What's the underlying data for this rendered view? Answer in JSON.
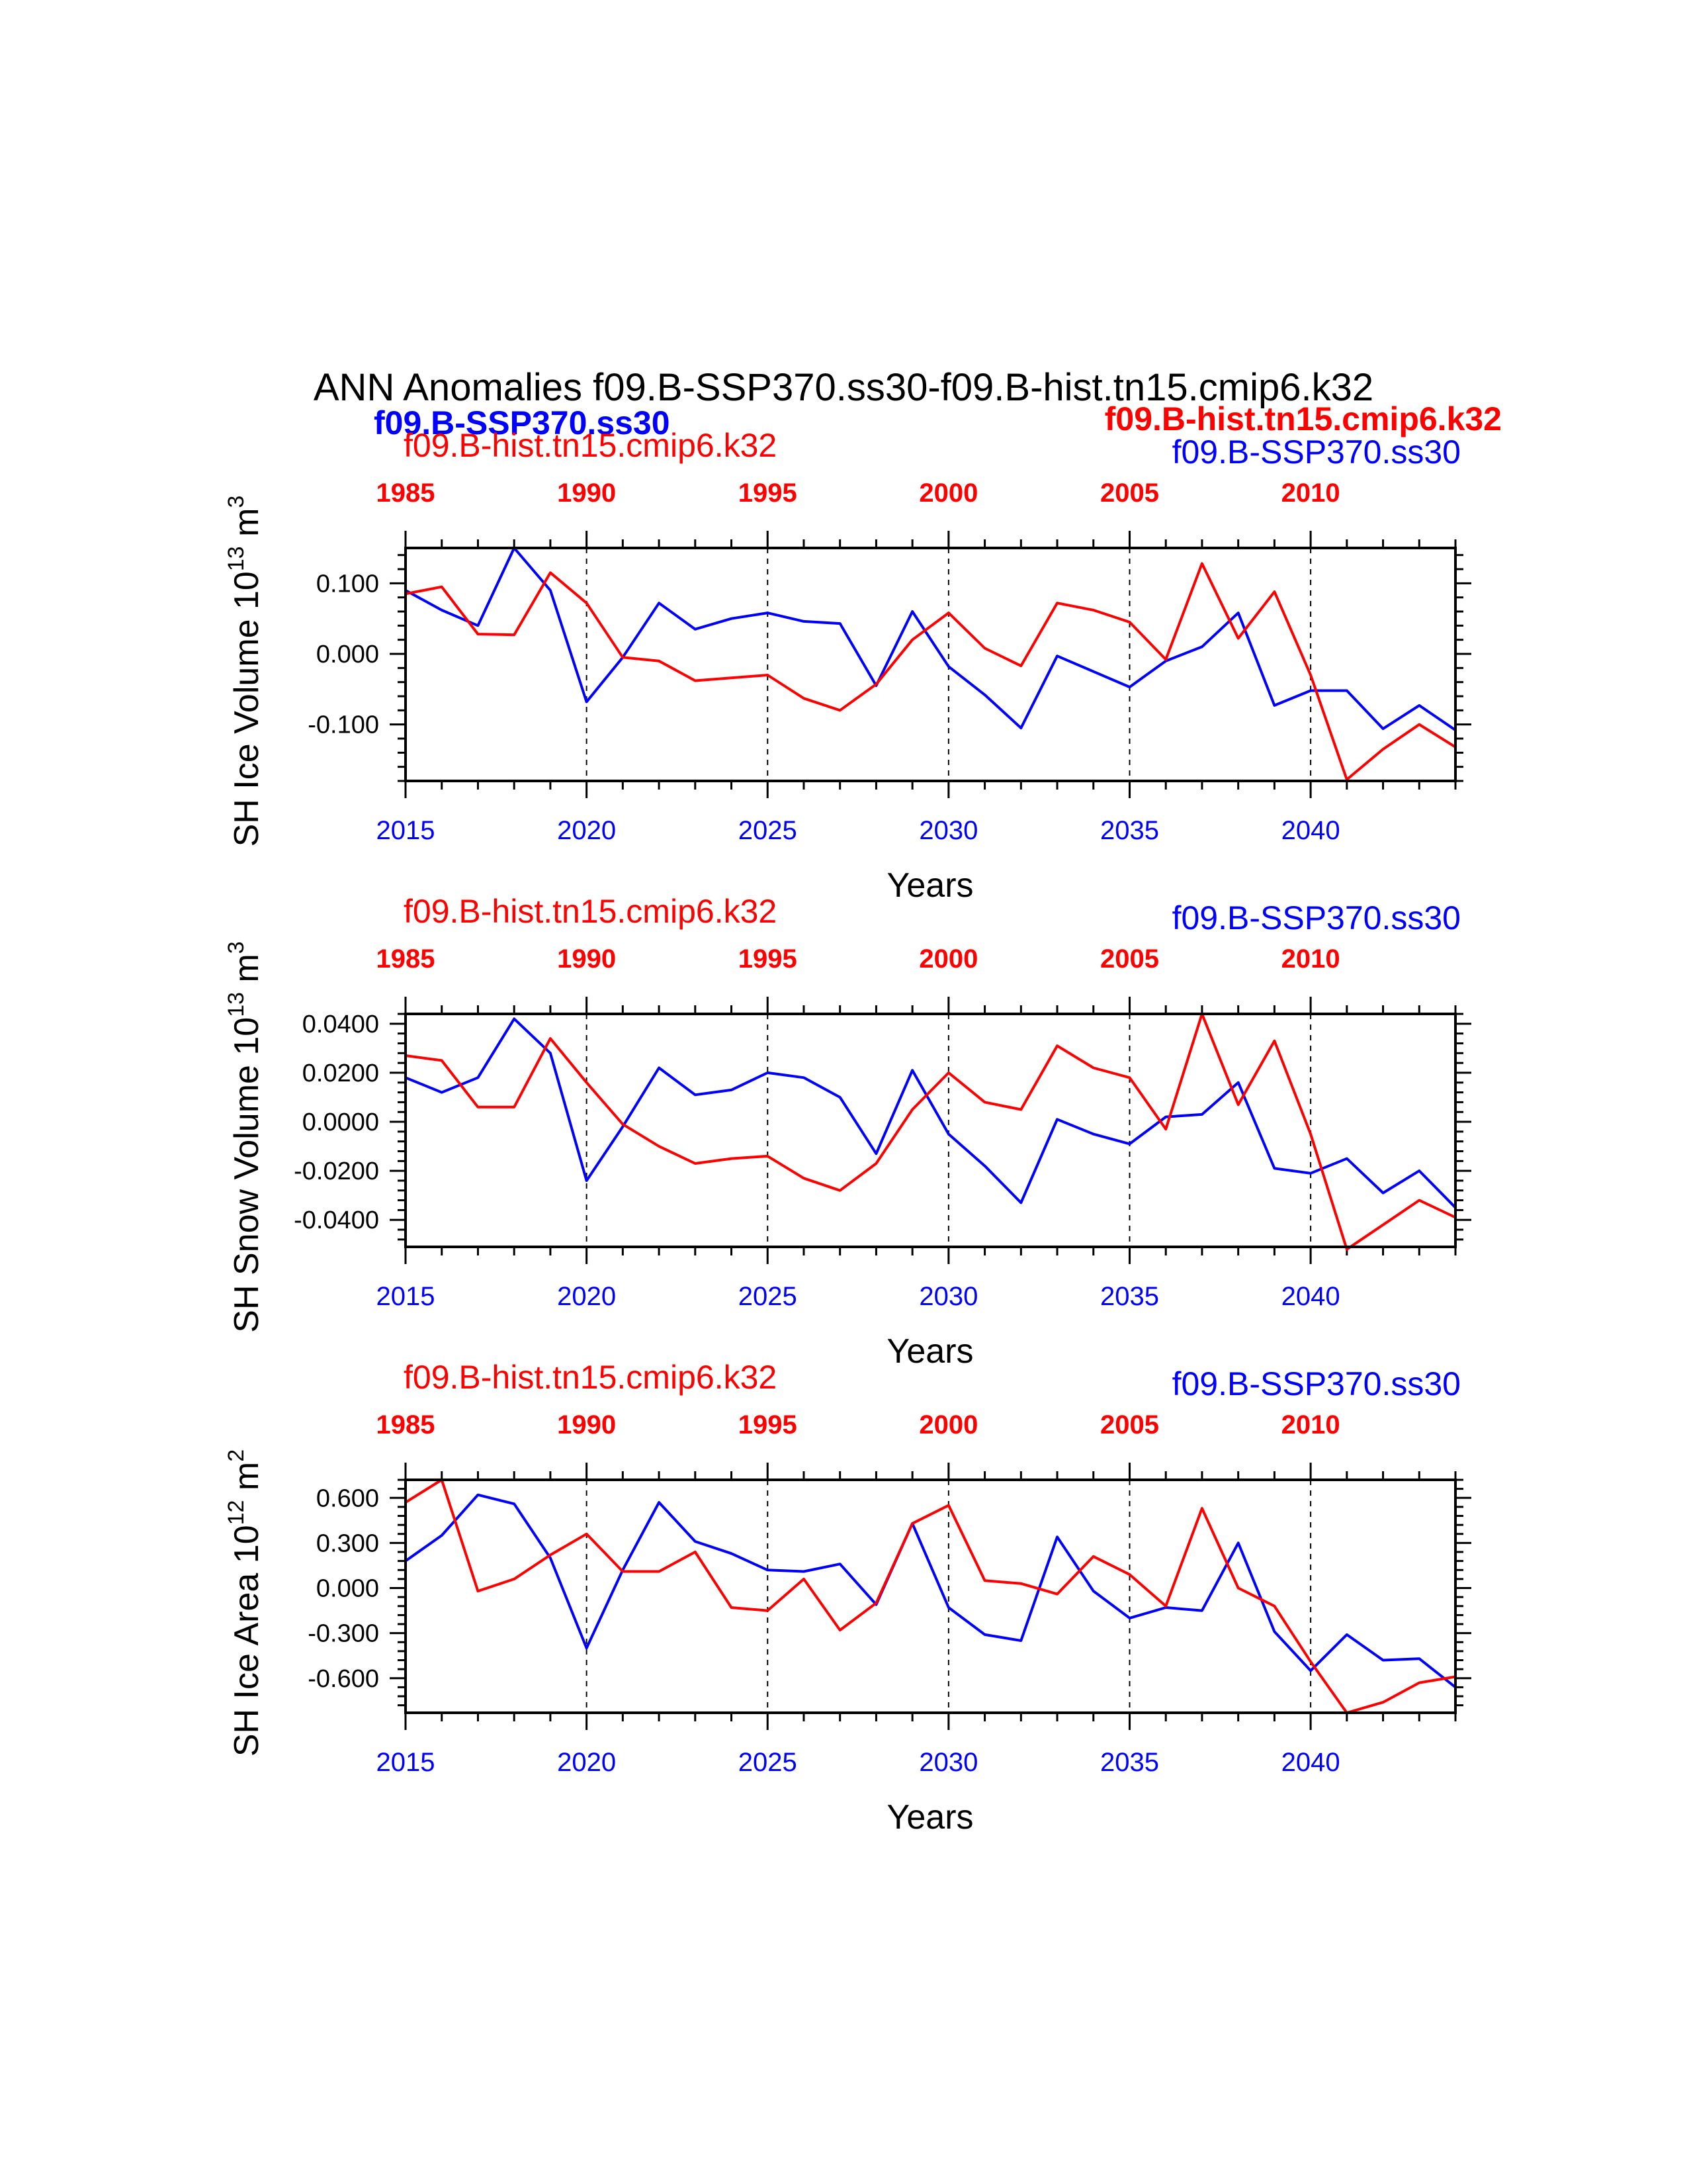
{
  "title": "ANN Anomalies f09.B-SSP370.ss30-f09.B-hist.tn15.cmip6.k32",
  "legend": {
    "left": "f09.B-SSP370.ss30",
    "right": "f09.B-hist.tn15.cmip6.k32"
  },
  "colors": {
    "case1": "#0000ff",
    "case2": "#ff0000",
    "axis": "#000000"
  },
  "chart_data": [
    {
      "type": "line",
      "ylabel": "SH Ice Volume 10",
      "ylabel_exp": "13",
      "ylabel_unit": "m",
      "ylabel_unit_exp": "3",
      "xlabel": "Years",
      "top_label_left": "f09.B-hist.tn15.cmip6.k32",
      "top_label_right": "f09.B-SSP370.ss30",
      "xlim": [
        2015,
        2044
      ],
      "ylim": [
        -0.18,
        0.15
      ],
      "yticks": [
        0.1,
        0.0,
        -0.1
      ],
      "ytick_labels": [
        "0.100",
        "0.000",
        "-0.100"
      ],
      "bottom_ticks": [
        2015,
        2020,
        2025,
        2030,
        2035,
        2040
      ],
      "top_ticks": [
        1985,
        1990,
        1995,
        2000,
        2005,
        2010
      ],
      "x": [
        2015,
        2016,
        2017,
        2018,
        2019,
        2020,
        2021,
        2022,
        2023,
        2024,
        2025,
        2026,
        2027,
        2028,
        2029,
        2030,
        2031,
        2032,
        2033,
        2034,
        2035,
        2036,
        2037,
        2038,
        2039,
        2040,
        2041,
        2042,
        2043,
        2044
      ],
      "series": [
        {
          "name": "f09.B-SSP370.ss30",
          "color": "#0000ff",
          "values": [
            0.09,
            0.062,
            0.04,
            0.15,
            0.09,
            -0.068,
            -0.005,
            0.072,
            0.035,
            0.05,
            0.058,
            0.046,
            0.043,
            -0.045,
            0.06,
            -0.018,
            -0.058,
            -0.105,
            -0.003,
            -0.025,
            -0.047,
            -0.01,
            0.01,
            0.058,
            -0.073,
            -0.052,
            -0.052,
            -0.106,
            -0.073,
            -0.108
          ]
        },
        {
          "name": "f09.B-hist.tn15.cmip6.k32",
          "color": "#ff0000",
          "values": [
            0.085,
            0.095,
            0.028,
            0.027,
            0.115,
            0.072,
            -0.005,
            -0.01,
            -0.038,
            -0.034,
            -0.03,
            -0.063,
            -0.08,
            -0.043,
            0.02,
            0.058,
            0.008,
            -0.017,
            0.072,
            0.062,
            0.045,
            -0.008,
            0.128,
            0.022,
            0.088,
            -0.03,
            -0.178,
            -0.135,
            -0.1,
            -0.132
          ]
        }
      ]
    },
    {
      "type": "line",
      "ylabel": "SH Snow Volume 10",
      "ylabel_exp": "13",
      "ylabel_unit": "m",
      "ylabel_unit_exp": "3",
      "xlabel": "Years",
      "top_label_left": "f09.B-hist.tn15.cmip6.k32",
      "top_label_right": "f09.B-SSP370.ss30",
      "xlim": [
        2015,
        2044
      ],
      "ylim": [
        -0.051,
        0.044
      ],
      "yticks": [
        0.04,
        0.02,
        0.0,
        -0.02,
        -0.04
      ],
      "ytick_labels": [
        "0.0400",
        "0.0200",
        "0.0000",
        "-0.0200",
        "-0.0400"
      ],
      "bottom_ticks": [
        2015,
        2020,
        2025,
        2030,
        2035,
        2040
      ],
      "top_ticks": [
        1985,
        1990,
        1995,
        2000,
        2005,
        2010
      ],
      "x": [
        2015,
        2016,
        2017,
        2018,
        2019,
        2020,
        2021,
        2022,
        2023,
        2024,
        2025,
        2026,
        2027,
        2028,
        2029,
        2030,
        2031,
        2032,
        2033,
        2034,
        2035,
        2036,
        2037,
        2038,
        2039,
        2040,
        2041,
        2042,
        2043,
        2044
      ],
      "series": [
        {
          "name": "f09.B-SSP370.ss30",
          "color": "#0000ff",
          "values": [
            0.018,
            0.012,
            0.018,
            0.042,
            0.028,
            -0.024,
            -0.002,
            0.022,
            0.011,
            0.013,
            0.02,
            0.018,
            0.01,
            -0.013,
            0.021,
            -0.005,
            -0.018,
            -0.033,
            0.001,
            -0.005,
            -0.009,
            0.002,
            0.003,
            0.016,
            -0.019,
            -0.021,
            -0.015,
            -0.029,
            -0.02,
            -0.035
          ]
        },
        {
          "name": "f09.B-hist.tn15.cmip6.k32",
          "color": "#ff0000",
          "values": [
            0.027,
            0.025,
            0.006,
            0.006,
            0.034,
            0.016,
            -0.001,
            -0.01,
            -0.017,
            -0.015,
            -0.014,
            -0.023,
            -0.028,
            -0.017,
            0.005,
            0.02,
            0.008,
            0.005,
            0.031,
            0.022,
            0.018,
            -0.003,
            0.044,
            0.007,
            0.033,
            -0.005,
            -0.052,
            -0.042,
            -0.032,
            -0.039
          ]
        }
      ]
    },
    {
      "type": "line",
      "ylabel": "SH Ice Area 10",
      "ylabel_exp": "12",
      "ylabel_unit": "m",
      "ylabel_unit_exp": "2",
      "xlabel": "Years",
      "top_label_left": "f09.B-hist.tn15.cmip6.k32",
      "top_label_right": "f09.B-SSP370.ss30",
      "xlim": [
        2015,
        2044
      ],
      "ylim": [
        -0.83,
        0.72
      ],
      "yticks": [
        0.6,
        0.3,
        0.0,
        -0.3,
        -0.6
      ],
      "ytick_labels": [
        "0.600",
        "0.300",
        "0.000",
        "-0.300",
        "-0.600"
      ],
      "bottom_ticks": [
        2015,
        2020,
        2025,
        2030,
        2035,
        2040
      ],
      "top_ticks": [
        1985,
        1990,
        1995,
        2000,
        2005,
        2010
      ],
      "x": [
        2015,
        2016,
        2017,
        2018,
        2019,
        2020,
        2021,
        2022,
        2023,
        2024,
        2025,
        2026,
        2027,
        2028,
        2029,
        2030,
        2031,
        2032,
        2033,
        2034,
        2035,
        2036,
        2037,
        2038,
        2039,
        2040,
        2041,
        2042,
        2043,
        2044
      ],
      "series": [
        {
          "name": "f09.B-SSP370.ss30",
          "color": "#0000ff",
          "values": [
            0.18,
            0.35,
            0.62,
            0.56,
            0.2,
            -0.4,
            0.12,
            0.57,
            0.31,
            0.23,
            0.12,
            0.11,
            0.16,
            -0.11,
            0.43,
            -0.13,
            -0.31,
            -0.35,
            0.34,
            -0.02,
            -0.2,
            -0.13,
            -0.15,
            0.3,
            -0.29,
            -0.55,
            -0.31,
            -0.48,
            -0.47,
            -0.66
          ]
        },
        {
          "name": "f09.B-hist.tn15.cmip6.k32",
          "color": "#ff0000",
          "values": [
            0.57,
            0.72,
            -0.02,
            0.06,
            0.22,
            0.36,
            0.11,
            0.11,
            0.24,
            -0.13,
            -0.15,
            0.06,
            -0.28,
            -0.1,
            0.43,
            0.55,
            0.05,
            0.03,
            -0.04,
            0.21,
            0.09,
            -0.12,
            0.53,
            0.0,
            -0.12,
            -0.49,
            -0.83,
            -0.76,
            -0.63,
            -0.59
          ]
        }
      ]
    }
  ]
}
